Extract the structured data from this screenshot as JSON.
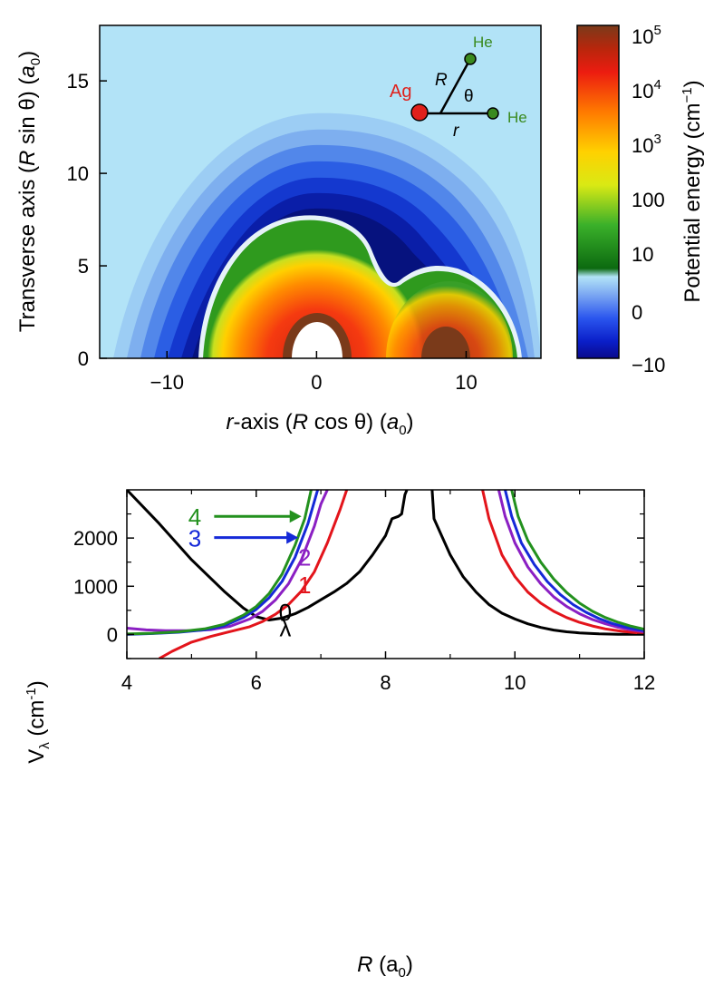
{
  "chart_data": [
    {
      "type": "heatmap",
      "xlim": [
        -14.5,
        15
      ],
      "ylim": [
        0,
        18
      ],
      "xticks": [
        -10,
        0,
        10
      ],
      "yticks": [
        0,
        5,
        10,
        15
      ],
      "xlabel": {
        "pre": "r",
        "mid": "-axis (",
        "R": "R",
        "cos": " cos θ) (",
        "a": "a",
        "sub": "0",
        "close": ")"
      },
      "ylabel": {
        "pre": "Transverse axis (",
        "R": "R",
        "sin": " sin θ) (",
        "a": "a",
        "sub": "0",
        "close": ")"
      },
      "colorbar": {
        "title": "Potential energy (cm",
        "title_sup": "−1",
        "title_close": ")",
        "labels": [
          {
            "base": "10",
            "sup": "5"
          },
          {
            "base": "10",
            "sup": "4"
          },
          {
            "base": "10",
            "sup": "3"
          },
          {
            "base": "100",
            "sup": ""
          },
          {
            "base": "10",
            "sup": ""
          },
          {
            "base": "0",
            "sup": ""
          },
          {
            "base": "−10",
            "sup": ""
          }
        ]
      },
      "inset": {
        "ag": "Ag",
        "he1": "He",
        "he2": "He",
        "R": "R",
        "r": "r",
        "theta": "θ"
      },
      "colors": {
        "ag": "#e0201b",
        "he": "#3a8a1e"
      }
    },
    {
      "type": "line",
      "xlim": [
        4,
        12
      ],
      "ylim": [
        -500,
        3000
      ],
      "xticks": [
        4,
        6,
        8,
        10,
        12
      ],
      "yticks": [
        0,
        1000,
        2000
      ],
      "xlabel": {
        "R": "R",
        "open": " (a",
        "sub": "0",
        "close": ")"
      },
      "ylabel": {
        "V": "V",
        "sub": "λ",
        "unit": " (cm",
        "sup": "-1",
        "close": ")"
      },
      "lambda_symbol": "λ",
      "series": [
        {
          "name": "0",
          "color": "#000000",
          "left": [
            [
              4.0,
              3000
            ],
            [
              4.5,
              2300
            ],
            [
              5.0,
              1550
            ],
            [
              5.5,
              900
            ],
            [
              5.8,
              550
            ],
            [
              6.0,
              370
            ],
            [
              6.2,
              300
            ],
            [
              6.4,
              340
            ],
            [
              6.6,
              430
            ],
            [
              6.8,
              560
            ],
            [
              7.0,
              720
            ],
            [
              7.2,
              880
            ],
            [
              7.4,
              1060
            ],
            [
              7.6,
              1300
            ],
            [
              7.8,
              1650
            ],
            [
              8.0,
              2050
            ],
            [
              8.1,
              2400
            ],
            [
              8.2,
              2450
            ],
            [
              8.25,
              2500
            ],
            [
              8.3,
              2900
            ],
            [
              8.33,
              3000
            ]
          ],
          "right": [
            [
              8.72,
              3000
            ],
            [
              8.75,
              2400
            ],
            [
              9.0,
              1650
            ],
            [
              9.2,
              1200
            ],
            [
              9.4,
              880
            ],
            [
              9.6,
              620
            ],
            [
              9.8,
              440
            ],
            [
              10.0,
              320
            ],
            [
              10.2,
              220
            ],
            [
              10.4,
              145
            ],
            [
              10.6,
              90
            ],
            [
              10.8,
              55
            ],
            [
              11.0,
              32
            ],
            [
              11.3,
              14
            ],
            [
              11.6,
              5
            ],
            [
              12.0,
              2
            ]
          ]
        },
        {
          "name": "1",
          "color": "#e3141b",
          "left": [
            [
              4.5,
              -500
            ],
            [
              4.7,
              -350
            ],
            [
              5.0,
              -160
            ],
            [
              5.3,
              -40
            ],
            [
              5.6,
              60
            ],
            [
              5.9,
              160
            ],
            [
              6.1,
              270
            ],
            [
              6.3,
              420
            ],
            [
              6.5,
              620
            ],
            [
              6.7,
              900
            ],
            [
              6.9,
              1300
            ],
            [
              7.1,
              1900
            ],
            [
              7.3,
              2600
            ],
            [
              7.4,
              3000
            ]
          ],
          "right": [
            [
              9.5,
              3000
            ],
            [
              9.6,
              2400
            ],
            [
              9.8,
              1650
            ],
            [
              10.0,
              1200
            ],
            [
              10.2,
              880
            ],
            [
              10.4,
              650
            ],
            [
              10.6,
              480
            ],
            [
              10.8,
              350
            ],
            [
              11.0,
              250
            ],
            [
              11.2,
              175
            ],
            [
              11.4,
              115
            ],
            [
              11.6,
              75
            ],
            [
              11.8,
              45
            ],
            [
              12.0,
              25
            ]
          ]
        },
        {
          "name": "2",
          "color": "#8b1fc3",
          "left": [
            [
              4.0,
              130
            ],
            [
              4.3,
              95
            ],
            [
              4.6,
              80
            ],
            [
              5.0,
              78
            ],
            [
              5.3,
              100
            ],
            [
              5.6,
              170
            ],
            [
              5.9,
              320
            ],
            [
              6.1,
              480
            ],
            [
              6.3,
              720
            ],
            [
              6.5,
              1050
            ],
            [
              6.7,
              1550
            ],
            [
              6.9,
              2250
            ],
            [
              7.0,
              2700
            ],
            [
              7.1,
              3000
            ]
          ],
          "right": [
            [
              9.75,
              3000
            ],
            [
              9.85,
              2450
            ],
            [
              10.0,
              1900
            ],
            [
              10.2,
              1400
            ],
            [
              10.4,
              1050
            ],
            [
              10.6,
              780
            ],
            [
              10.8,
              580
            ],
            [
              11.0,
              430
            ],
            [
              11.2,
              310
            ],
            [
              11.4,
              220
            ],
            [
              11.6,
              150
            ],
            [
              11.8,
              95
            ],
            [
              12.0,
              55
            ]
          ]
        },
        {
          "name": "3",
          "color": "#1529d8",
          "left": [
            [
              4.0,
              0
            ],
            [
              4.4,
              20
            ],
            [
              4.8,
              45
            ],
            [
              5.2,
              95
            ],
            [
              5.5,
              180
            ],
            [
              5.8,
              350
            ],
            [
              6.0,
              520
            ],
            [
              6.2,
              760
            ],
            [
              6.4,
              1100
            ],
            [
              6.6,
              1600
            ],
            [
              6.8,
              2300
            ],
            [
              6.95,
              3000
            ]
          ],
          "right": [
            [
              9.85,
              3000
            ],
            [
              9.95,
              2450
            ],
            [
              10.1,
              1900
            ],
            [
              10.3,
              1450
            ],
            [
              10.5,
              1100
            ],
            [
              10.7,
              830
            ],
            [
              10.9,
              620
            ],
            [
              11.1,
              460
            ],
            [
              11.3,
              330
            ],
            [
              11.5,
              230
            ],
            [
              11.7,
              155
            ],
            [
              11.9,
              100
            ],
            [
              12.0,
              80
            ]
          ]
        },
        {
          "name": "4",
          "color": "#23911e",
          "left": [
            [
              4.0,
              10
            ],
            [
              4.4,
              25
            ],
            [
              4.8,
              55
            ],
            [
              5.2,
              115
            ],
            [
              5.5,
              210
            ],
            [
              5.8,
              400
            ],
            [
              6.0,
              580
            ],
            [
              6.2,
              850
            ],
            [
              6.4,
              1250
            ],
            [
              6.6,
              1850
            ],
            [
              6.75,
              2400
            ],
            [
              6.85,
              3000
            ]
          ],
          "right": [
            [
              9.95,
              3000
            ],
            [
              10.05,
              2450
            ],
            [
              10.2,
              1950
            ],
            [
              10.4,
              1500
            ],
            [
              10.6,
              1150
            ],
            [
              10.8,
              870
            ],
            [
              11.0,
              650
            ],
            [
              11.2,
              480
            ],
            [
              11.4,
              350
            ],
            [
              11.6,
              250
            ],
            [
              11.8,
              170
            ],
            [
              12.0,
              110
            ]
          ]
        }
      ],
      "annotations": [
        {
          "text": "4",
          "color": "#23911e",
          "arrow": true
        },
        {
          "text": "3",
          "color": "#1529d8",
          "arrow": true
        },
        {
          "text": "2",
          "color": "#8b1fc3",
          "arrow": false
        },
        {
          "text": "1",
          "color": "#e3141b",
          "arrow": false
        },
        {
          "text": "0",
          "color": "#000000",
          "arrow": false
        }
      ]
    }
  ]
}
